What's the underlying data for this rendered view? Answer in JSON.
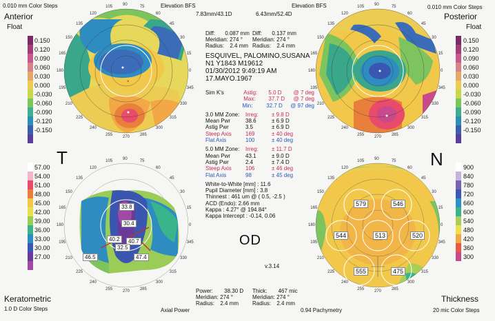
{
  "header": {
    "top_left_steps": "0.010 mm Color Steps",
    "elev_left": "Elevation BFS",
    "elev_right": "Elevation BFS",
    "bfs_left": "7.83mm/43.1D",
    "bfs_right": "6.43mm/52.4D",
    "top_right_steps": "0.010 mm Color Steps"
  },
  "maps": {
    "anterior": {
      "title": "Anterior",
      "subtitle": "Float"
    },
    "posterior": {
      "title": "Posterior",
      "subtitle": "Float"
    },
    "keratometric": {
      "title": "Keratometric",
      "subtitle": "1.0 D Color Steps",
      "label": "Axial Power"
    },
    "thickness": {
      "title": "Thickness",
      "subtitle": "20 mic Color Steps",
      "label": "0.94 Pachymetry"
    }
  },
  "side_letters": {
    "left": "T",
    "right": "N"
  },
  "eye": "OD",
  "version": "v.3.14",
  "scales": {
    "elevation_left": [
      "0.150",
      "0.120",
      "0.090",
      "0.060",
      "0.030",
      "0.000",
      "-0.030",
      "-0.060",
      "-0.090",
      "-0.120",
      "-0.150"
    ],
    "elevation_right": [
      "0.150",
      "0.120",
      "0.090",
      "0.060",
      "0.030",
      "0.000",
      "-0.030",
      "-0.060",
      "-0.090",
      "-0.120",
      "-0.150"
    ],
    "keratometric": [
      "57.00",
      "54.00",
      "51.00",
      "48.00",
      "45.00",
      "42.00",
      "39.00",
      "36.00",
      "33.00",
      "30.00",
      "27.00"
    ],
    "thickness": [
      "900",
      "840",
      "780",
      "720",
      "660",
      "600",
      "540",
      "480",
      "420",
      "360",
      "300"
    ],
    "elevation_colors": [
      "#7b2a68",
      "#a23c7a",
      "#c75a8a",
      "#d4848a",
      "#e6a86a",
      "#eccc52",
      "#c7d84c",
      "#7ec45e",
      "#3fae8a",
      "#2f8eb8",
      "#3a5fb0",
      "#5a3e9a"
    ],
    "kerato_colors": [
      "#ffffff",
      "#f5b6c9",
      "#e84c6a",
      "#e8803c",
      "#f2c84a",
      "#e8e24a",
      "#9ccc58",
      "#3ab48a",
      "#2e8cc0",
      "#3a56b0",
      "#6a3a9a",
      "#a04aa8"
    ],
    "thick_colors": [
      "#ffffff",
      "#c4b4dc",
      "#7a62b4",
      "#3a58b4",
      "#2e90c8",
      "#3ab48a",
      "#a8cf56",
      "#ece04a",
      "#f2a846",
      "#e85a44",
      "#c84a8a"
    ]
  },
  "top_diffs": {
    "left": {
      "diff": "0.087 mm",
      "meridian": "274 °",
      "radius": "2.4 mm"
    },
    "right": {
      "diff": "0.137 mm",
      "meridian": "274 °",
      "radius": "2.4 mm"
    },
    "labels": {
      "diff": "Diff:",
      "meridian": "Meridian:",
      "radius": "Radius:"
    }
  },
  "patient": {
    "name": "ESQUIVEL, PALOMINO,SUSANA",
    "id": "N1 Y1843 M19612",
    "datetime": "01/30/2012 9:49:19 AM",
    "dob": "17.MAYO.1967"
  },
  "simk": [
    {
      "label": "Sim K's",
      "key": "Astig:",
      "value": "5.0 D",
      "extra": "@ 7 deg"
    },
    {
      "label": "",
      "key": "Max:",
      "value": "37.7 D",
      "extra": "@ 7 deg"
    },
    {
      "label": "",
      "key": "Min:",
      "value": "32.7 D",
      "extra": "@ 97 deg"
    }
  ],
  "zone3": [
    {
      "key": "3.0 MM Zone:",
      "val": "Irreg:",
      "extra": "± 9.8 D"
    },
    {
      "key": "Mean Pwr",
      "val": "38.6",
      "extra": "± 6.9 D"
    },
    {
      "key": "Astig Pwr",
      "val": "3.5",
      "extra": "± 6.9 D"
    },
    {
      "key": "Steep Axis",
      "val": "169",
      "extra": "± 40 deg"
    },
    {
      "key": "Flat Axis",
      "val": "100",
      "extra": "± 40 deg"
    }
  ],
  "zone5": [
    {
      "key": "5.0 MM Zone:",
      "val": "Irreg:",
      "extra": "± 11.7 D"
    },
    {
      "key": "Mean Pwr",
      "val": "43.1",
      "extra": "± 9.0 D"
    },
    {
      "key": "Astig Pwr",
      "val": "2.4",
      "extra": "± 7.4 D"
    },
    {
      "key": "Steep Axis",
      "val": "106",
      "extra": "± 46 deg"
    },
    {
      "key": "Flat Axis",
      "val": "98",
      "extra": "± 45 deg"
    }
  ],
  "misc": [
    "White-to-White [mm] : 11.6",
    "Pupil Diameter [mm] : 3.8",
    "Thinnest : 461 um @ ( 0.5, -2.5 )",
    "ACD (Endo): 2.66 mm",
    "Kappa : 4.27° @ 194.84°",
    "Kappa Intercept : -0.14, 0.06"
  ],
  "bottom": {
    "left": {
      "power_label": "Power:",
      "power": "38.30 D",
      "meridian": "274 °",
      "radius": "2.4 mm"
    },
    "right": {
      "thick_label": "Thick:",
      "thick": "467 mic",
      "meridian": "274 °",
      "radius": "2.4 mm"
    }
  },
  "pachy_values": [
    "579",
    "546",
    "544",
    "513",
    "520",
    "555",
    "475"
  ],
  "kerato_values": [
    "33.8",
    "30.4",
    "40.2",
    "40.7",
    "32.5",
    "46.5",
    "47.4"
  ],
  "degree_labels": [
    "90",
    "75",
    "105",
    "60",
    "120",
    "45",
    "135",
    "30",
    "150",
    "15",
    "165",
    "0",
    "180",
    "345",
    "195",
    "330",
    "210",
    "315",
    "225",
    "300",
    "240",
    "285",
    "255",
    "270"
  ]
}
